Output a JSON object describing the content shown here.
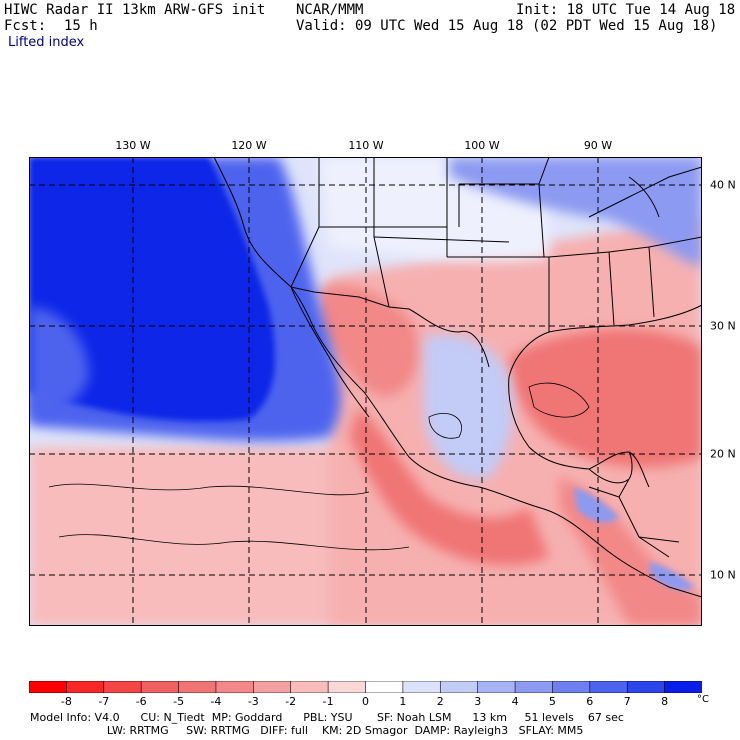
{
  "header": {
    "title_left": "HIWC Radar II 13km ARW-GFS init",
    "title_mid": "NCAR/MMM",
    "init": "Init: 18 UTC Tue 14 Aug 18",
    "fcst_label": "Fcst:",
    "fcst_value": "15 h",
    "valid": "Valid: 09 UTC Wed 15 Aug 18 (02 PDT Wed 15 Aug 18)",
    "field": "Lifted index"
  },
  "map": {
    "lon_labels": [
      "130 W",
      "120 W",
      "110 W",
      "100 W",
      "90 W"
    ],
    "lat_labels": [
      "40 N",
      "30 N",
      "20 N",
      "10 N"
    ],
    "colors": {
      "ocean_stable": "#0b26e8",
      "stable_mid": "#5a75f0",
      "stable_light": "#c4ccf8",
      "neutral": "#ffffff",
      "unstable_light": "#fbc6c6",
      "unstable_mid": "#f59090",
      "unstable_strong": "#ef5a5a",
      "border": "#000000"
    }
  },
  "colorbar": {
    "ticks": [
      "-8",
      "-7",
      "-6",
      "-5",
      "-4",
      "-3",
      "-2",
      "-1",
      "0",
      "1",
      "2",
      "3",
      "4",
      "5",
      "6",
      "7",
      "8"
    ],
    "unit": "°C",
    "colors": [
      "#ff0000",
      "#f92828",
      "#f44646",
      "#f06060",
      "#f07474",
      "#f28888",
      "#f5a0a0",
      "#f8bcbc",
      "#fbd8d8",
      "#ffffff",
      "#dde2fb",
      "#c3cbf7",
      "#a8b3f4",
      "#8c9af1",
      "#6e80ef",
      "#4e64ee",
      "#2d46ec",
      "#0a1eea"
    ]
  },
  "footer": {
    "line1": "Model Info: V4.0      CU: N_Tiedt  MP: Goddard      PBL: YSU       SF: Noah LSM      13 km     51 levels    67 sec",
    "line2": "                      LW: RRTMG     SW: RRTMG   DIFF: full    KM: 2D Smagor  DAMP: Rayleigh3   SFLAY: MM5"
  }
}
